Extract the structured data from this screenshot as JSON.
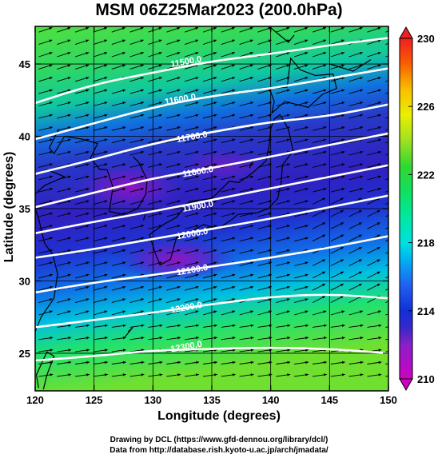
{
  "title": "MSM 06Z25Mar2023 (200.0hPa)",
  "xlabel": "Longitude (degrees)",
  "ylabel": "Latitude (degrees)",
  "credits": [
    "Drawing by DCL (https://www.gfd-dennou.org/library/dcl/)",
    "Data from http://database.rish.kyoto-u.ac.jp/arch/jmadata/"
  ],
  "chart_data": {
    "type": "heatmap",
    "variable_shading": "temperature (K)",
    "variable_contours": "geopotential height (m)",
    "vectors": "wind",
    "xlim": [
      120,
      150
    ],
    "ylim": [
      22.4,
      47.6
    ],
    "x_ticks": [
      "120",
      "125",
      "130",
      "135",
      "140",
      "145",
      "150"
    ],
    "y_ticks": [
      "25",
      "30",
      "35",
      "40",
      "45"
    ],
    "colorbar": {
      "range": [
        210,
        230
      ],
      "ticks": [
        "210",
        "214",
        "218",
        "222",
        "226",
        "230"
      ],
      "stops": [
        {
          "v": 210,
          "c": "#d000c0"
        },
        {
          "v": 212,
          "c": "#8a20c8"
        },
        {
          "v": 213,
          "c": "#3a28c8"
        },
        {
          "v": 214,
          "c": "#1030d8"
        },
        {
          "v": 215.5,
          "c": "#2060f0"
        },
        {
          "v": 217,
          "c": "#00b0f0"
        },
        {
          "v": 218,
          "c": "#00e0e0"
        },
        {
          "v": 219.5,
          "c": "#00e8a0"
        },
        {
          "v": 221,
          "c": "#10e060"
        },
        {
          "v": 222.5,
          "c": "#30d830"
        },
        {
          "v": 224,
          "c": "#a0e020"
        },
        {
          "v": 225.5,
          "c": "#e8f000"
        },
        {
          "v": 227,
          "c": "#f8c000"
        },
        {
          "v": 228.5,
          "c": "#f86000"
        },
        {
          "v": 230,
          "c": "#f02020"
        }
      ]
    },
    "contours": [
      {
        "label": "11500.0",
        "lon": [
          120,
          125,
          130,
          135,
          140,
          145,
          150
        ],
        "lat": [
          42.3,
          43.6,
          44.4,
          45.2,
          45.7,
          46.3,
          46.8
        ],
        "label_at": [
          131.5,
          45.0
        ]
      },
      {
        "label": "11600.0",
        "lon": [
          120,
          125,
          130,
          135,
          140,
          145,
          150
        ],
        "lat": [
          39.8,
          40.9,
          42.0,
          42.8,
          43.3,
          44.0,
          44.7
        ],
        "label_at": [
          131.0,
          42.4
        ]
      },
      {
        "label": "11700.0",
        "lon": [
          120,
          125,
          130,
          135,
          140,
          145,
          150
        ],
        "lat": [
          37.4,
          38.4,
          39.5,
          40.3,
          41.0,
          41.4,
          42.2
        ],
        "label_at": [
          132.0,
          39.8
        ]
      },
      {
        "label": "11800.0",
        "lon": [
          120,
          125,
          130,
          135,
          140,
          145,
          150
        ],
        "lat": [
          35.1,
          36.1,
          37.1,
          37.8,
          38.6,
          39.4,
          40.2
        ],
        "label_at": [
          132.5,
          37.4
        ]
      },
      {
        "label": "11900.0",
        "lon": [
          120,
          125,
          130,
          135,
          140,
          145,
          150
        ],
        "lat": [
          33.3,
          34.1,
          34.8,
          35.6,
          36.4,
          37.2,
          38.0
        ],
        "label_at": [
          132.5,
          35.0
        ]
      },
      {
        "label": "12000.0",
        "lon": [
          120,
          125,
          130,
          135,
          140,
          145,
          150
        ],
        "lat": [
          31.6,
          32.2,
          32.9,
          33.6,
          34.3,
          35.1,
          35.9
        ],
        "label_at": [
          132.0,
          33.1
        ]
      },
      {
        "label": "12100.0",
        "lon": [
          120,
          125,
          130,
          135,
          140,
          145,
          150
        ],
        "lat": [
          29.2,
          29.9,
          30.4,
          31.0,
          31.6,
          32.3,
          33.1
        ],
        "label_at": [
          132.0,
          30.6
        ]
      },
      {
        "label": "12200.0",
        "lon": [
          120,
          125,
          130,
          135,
          140,
          145,
          150
        ],
        "lat": [
          26.8,
          27.3,
          27.8,
          28.4,
          28.9,
          29.1,
          28.8
        ],
        "label_at": [
          131.5,
          28.0
        ]
      },
      {
        "label": "12300.0",
        "lon": [
          120,
          125,
          130,
          135,
          140,
          145,
          150
        ],
        "lat": [
          24.5,
          24.8,
          25.2,
          25.3,
          25.4,
          25.3,
          25.0
        ],
        "label_at": [
          131.5,
          25.3
        ]
      }
    ]
  }
}
